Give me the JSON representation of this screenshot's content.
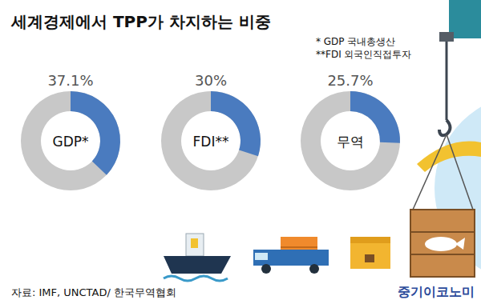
{
  "title": "세계경제에서 TPP가 차지하는 비중",
  "notes": [
    "* GDP 국내총생산",
    "**FDI  외국인직접투자"
  ],
  "source": "자료: IMF, UNCTAD/ 한국무역협회",
  "brand": "중기이코노미",
  "chart_data": [
    {
      "type": "donut",
      "title": "GDP*",
      "values": [
        37.1
      ],
      "value_labels": [
        "37.1%"
      ],
      "ylim": [
        0,
        100
      ],
      "color": "#4a7bbf",
      "data_labels": true
    },
    {
      "type": "donut",
      "title": "FDI**",
      "values": [
        30
      ],
      "value_labels": [
        "30%"
      ],
      "ylim": [
        0,
        100
      ],
      "color": "#4a7bbf",
      "data_labels": true
    },
    {
      "type": "donut",
      "title": "무역",
      "values": [
        25.7
      ],
      "value_labels": [
        "25.7%"
      ],
      "ylim": [
        0,
        100
      ],
      "color": "#4a7bbf",
      "data_labels": true
    }
  ]
}
